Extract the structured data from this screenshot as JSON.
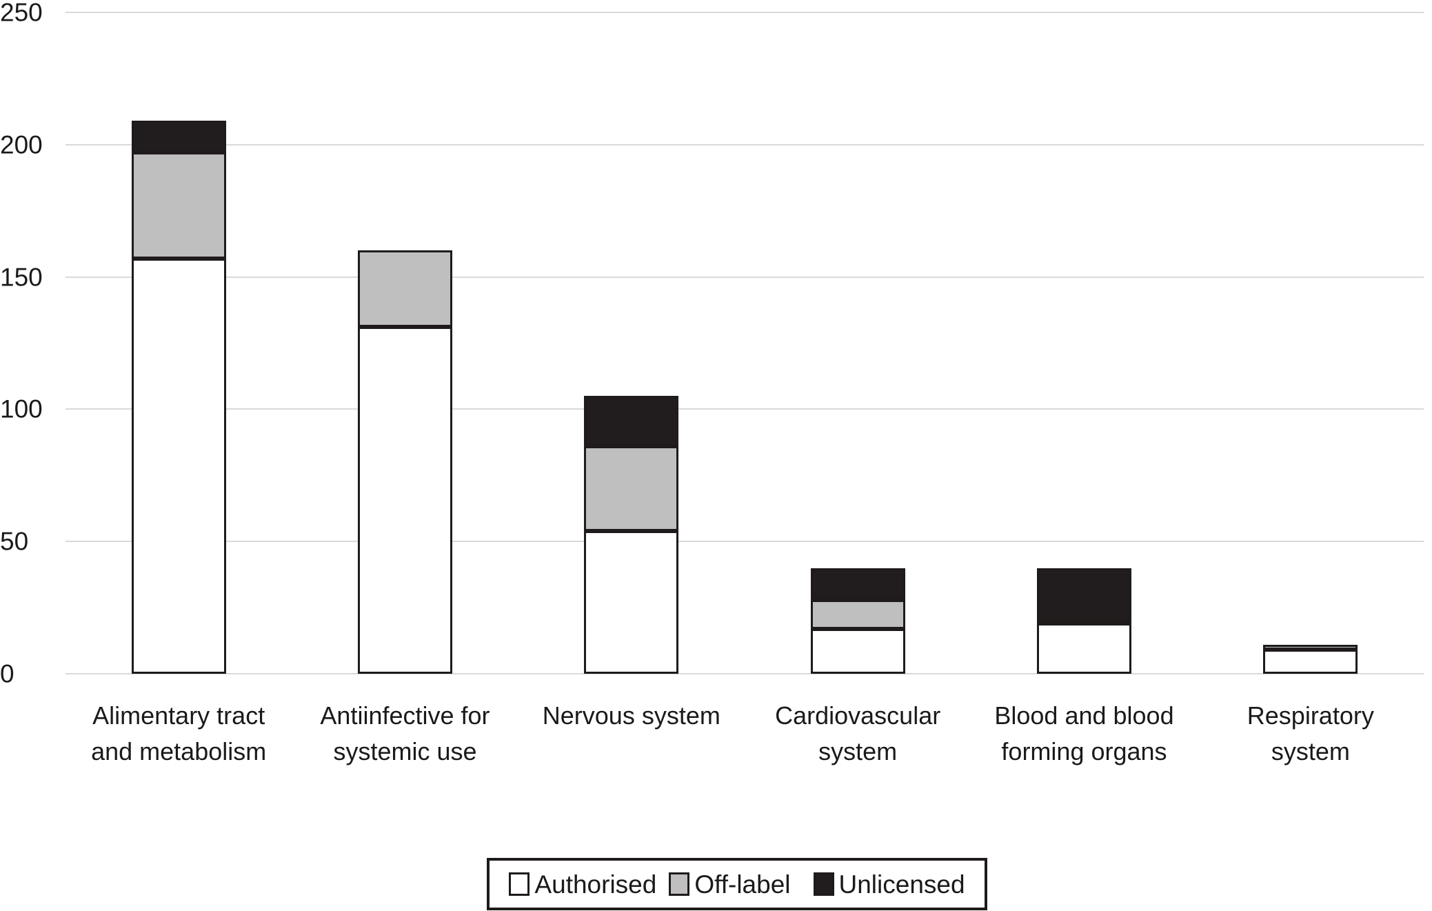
{
  "chart_data": {
    "type": "bar",
    "stacked": true,
    "title": "",
    "xlabel": "",
    "ylabel": "",
    "categories": [
      "Alimentary tract and metabolism",
      "Antiinfective for systemic use",
      "Nervous system",
      "Cardiovascular system",
      "Blood and blood forming organs",
      "Respiratory system"
    ],
    "category_label_lines": [
      [
        "Alimentary tract",
        "and metabolism"
      ],
      [
        "Antiinfective for",
        "systemic use"
      ],
      [
        "Nervous system"
      ],
      [
        "Cardiovascular",
        "system"
      ],
      [
        "Blood and blood",
        "forming organs"
      ],
      [
        "Respiratory",
        "system"
      ]
    ],
    "series": [
      {
        "name": "Authorised",
        "color": "#ffffff",
        "values": [
          157,
          131,
          54,
          17,
          19,
          9
        ]
      },
      {
        "name": "Off-label",
        "color": "#bfbfbf",
        "values": [
          40,
          29,
          32,
          11,
          1,
          2
        ]
      },
      {
        "name": "Unlicensed",
        "color": "#211d1f",
        "values": [
          12,
          0,
          19,
          12,
          20,
          0
        ]
      }
    ],
    "totals": [
      209,
      160,
      105,
      40,
      40,
      11
    ],
    "ylim": [
      0,
      250
    ],
    "ytick_interval": 50,
    "yticks": [
      "0",
      "50",
      "100",
      "150",
      "200",
      "250"
    ],
    "grid": "horizontal-only",
    "legend_position": "bottom-center"
  },
  "colors": {
    "background": "#ffffff",
    "gridline": "#d9d9d9",
    "bar_border": "#1f1b1b",
    "text": "#1a1a1a",
    "legend_border": "#1f1b1b"
  }
}
